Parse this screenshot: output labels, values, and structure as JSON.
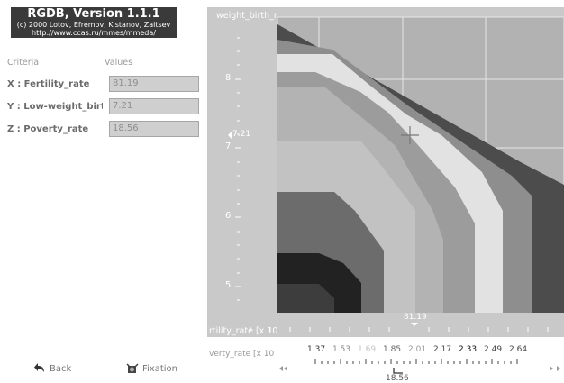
{
  "header": {
    "title": "RGDB, Version 1.1.1",
    "copyright": "(c) 2000 Lotov, Efremov, Kistanov, Zaitsev",
    "url": "http://www.ccas.ru/mmes/mmeda/"
  },
  "criteria": {
    "col_criteria": "Criteria",
    "col_values": "Values",
    "rows": [
      {
        "label": "X : Fertility_rate",
        "value": "81.19"
      },
      {
        "label": "Y : Low-weight_birth",
        "value": "7.21"
      },
      {
        "label": "Z : Poverty_rate",
        "value": "18.56"
      }
    ]
  },
  "buttons": {
    "back": "Back",
    "fixation": "Fixation"
  },
  "chart": {
    "y_axis_title": "weight_birth_r",
    "x_axis_title": "rtility_rate [x 10",
    "y_ticks": [
      "8",
      "7",
      "6",
      "5"
    ],
    "y_marker": "7.21",
    "x_marker": "81.19",
    "z_scale_title": "verty_rate [x 10",
    "z_scale_ticks": [
      "1.37",
      "1.53",
      "1.69",
      "1.85",
      "2.01",
      "2.17",
      "2.33",
      "2.49",
      "2.64"
    ],
    "z_cursor": "18.56",
    "colors": {
      "panel_bg": "#c9c9c9",
      "plot_bg": "#b2b2b2",
      "grid": "#e6e6e6"
    }
  }
}
